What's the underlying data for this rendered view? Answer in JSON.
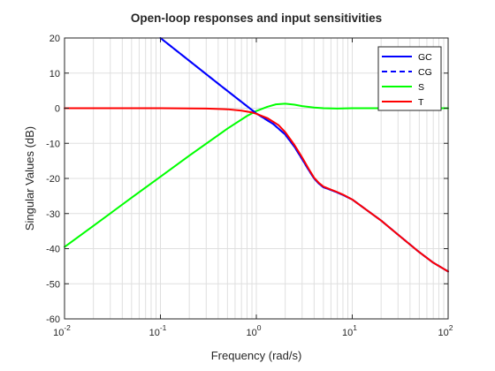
{
  "chart_data": {
    "type": "line",
    "title": "Open-loop responses and input sensitivities",
    "xlabel": "Frequency (rad/s)",
    "ylabel": "Singular Values (dB)",
    "xscale": "log",
    "xlim": [
      0.01,
      100
    ],
    "ylim": [
      -60,
      20
    ],
    "grid": true,
    "legend_position": "top-right",
    "x_ticks": [
      {
        "value": 0.01,
        "base": "10",
        "exp": "-2"
      },
      {
        "value": 0.1,
        "base": "10",
        "exp": "-1"
      },
      {
        "value": 1,
        "base": "10",
        "exp": "0"
      },
      {
        "value": 10,
        "base": "10",
        "exp": "1"
      },
      {
        "value": 100,
        "base": "10",
        "exp": "2"
      }
    ],
    "y_ticks": [
      20,
      10,
      0,
      -10,
      -20,
      -30,
      -40,
      -50,
      -60
    ],
    "series": [
      {
        "name": "GC",
        "color": "#0000ff",
        "dash": "solid",
        "x": [
          0.1,
          0.2,
          0.4,
          0.7,
          1,
          1.5,
          2,
          2.5,
          3,
          3.5,
          4,
          4.5,
          5,
          6,
          7,
          8,
          10,
          15,
          20,
          30,
          50,
          70,
          100
        ],
        "y": [
          20,
          13.5,
          7,
          1.8,
          -1.5,
          -4.5,
          -7.5,
          -11,
          -14.5,
          -17.5,
          -20,
          -21.5,
          -22.5,
          -23.3,
          -24,
          -24.7,
          -26,
          -29.5,
          -32,
          -36,
          -41,
          -44,
          -46.5
        ]
      },
      {
        "name": "CG",
        "color": "#0000ff",
        "dash": "dashed",
        "x": [
          0.1,
          0.2,
          0.4,
          0.7,
          1,
          1.5,
          2,
          2.5,
          3,
          3.5,
          4,
          4.5,
          5,
          6,
          7,
          8,
          10,
          15,
          20,
          30,
          50,
          70,
          100
        ],
        "y": [
          20,
          13.5,
          7,
          1.8,
          -1.5,
          -4.5,
          -7.5,
          -11,
          -14.5,
          -17.5,
          -20,
          -21.5,
          -22.5,
          -23.3,
          -24,
          -24.7,
          -26,
          -29.5,
          -32,
          -36,
          -41,
          -44,
          -46.5
        ]
      },
      {
        "name": "S",
        "color": "#00ff00",
        "dash": "solid",
        "x": [
          0.01,
          0.02,
          0.05,
          0.1,
          0.2,
          0.5,
          0.8,
          1,
          1.3,
          1.6,
          2,
          2.5,
          3,
          4,
          5,
          7,
          10,
          20,
          50,
          100
        ],
        "y": [
          -39.5,
          -33.5,
          -25.5,
          -19.5,
          -13.5,
          -5.8,
          -2.2,
          -0.8,
          0.4,
          1.1,
          1.3,
          1.0,
          0.6,
          0.2,
          0.0,
          -0.1,
          0.0,
          0.0,
          0.0,
          0.0
        ]
      },
      {
        "name": "T",
        "color": "#ff0000",
        "dash": "solid",
        "x": [
          0.01,
          0.05,
          0.1,
          0.2,
          0.3,
          0.5,
          0.7,
          0.9,
          1,
          1.3,
          1.7,
          2,
          2.5,
          3,
          3.5,
          4,
          4.5,
          5,
          6,
          7,
          8,
          10,
          15,
          20,
          30,
          50,
          70,
          100
        ],
        "y": [
          0,
          0,
          0,
          -0.05,
          -0.1,
          -0.3,
          -0.7,
          -1.2,
          -1.6,
          -2.8,
          -4.8,
          -6.8,
          -10.5,
          -14,
          -17.2,
          -19.8,
          -21.3,
          -22.3,
          -23.2,
          -23.9,
          -24.6,
          -26,
          -29.5,
          -32,
          -36,
          -41,
          -44,
          -46.5
        ]
      }
    ]
  }
}
